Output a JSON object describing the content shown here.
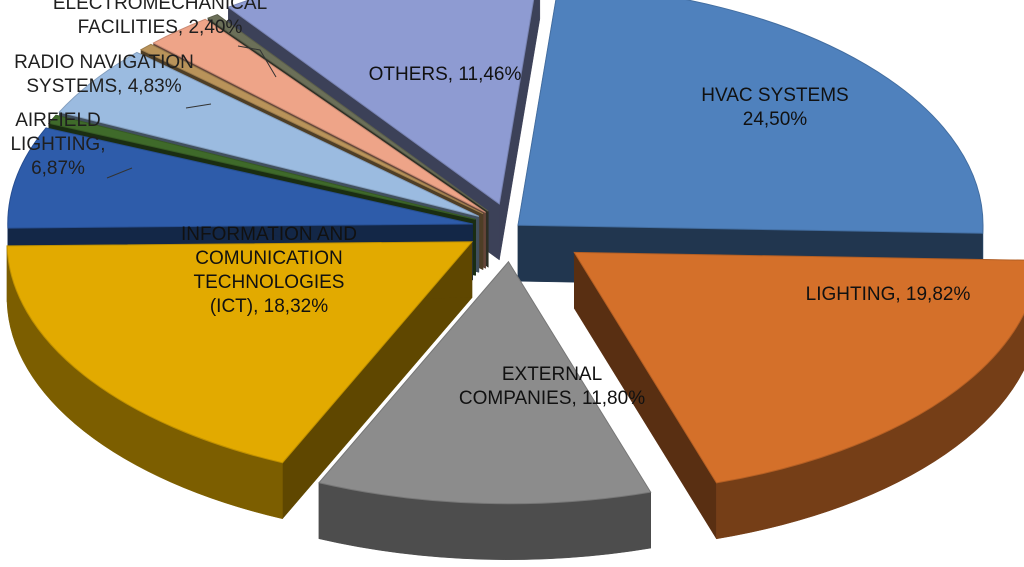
{
  "chart_data": {
    "type": "pie",
    "title": "",
    "style": "3d-exploded",
    "legend": "none",
    "slices": [
      {
        "name": "HVAC SYSTEMS",
        "value": 24.5,
        "label_lines": [
          "HVAC SYSTEMS",
          "24,50%"
        ],
        "color": "#4f81bd"
      },
      {
        "name": "LIGHTING",
        "value": 19.82,
        "label_lines": [
          "LIGHTING, 19,82%"
        ],
        "color": "#d4702a"
      },
      {
        "name": "EXTERNAL COMPANIES",
        "value": 11.8,
        "label_lines": [
          "EXTERNAL",
          "COMPANIES, 11,80%"
        ],
        "color": "#8c8c8c"
      },
      {
        "name": "INFORMATION AND COMUNICATION TECHNOLOGIES (ICT)",
        "value": 18.32,
        "label_lines": [
          "INFORMATION AND",
          "COMUNICATION",
          "TECHNOLOGIES",
          "(ICT), 18,32%"
        ],
        "color": "#e2aa00"
      },
      {
        "name": "AIRFIELD LIGHTING",
        "value": 6.87,
        "label_lines": [
          "AIRFIELD",
          "LIGHTING,",
          "6,87%"
        ],
        "color": "#2e5caa"
      },
      {
        "name": "",
        "value": 0.6,
        "label_lines": [],
        "color": "#3f6a2a"
      },
      {
        "name": "RADIO NAVIGATION SYSTEMS",
        "value": 4.83,
        "label_lines": [
          "RADIO NAVIGATION",
          "SYSTEMS, 4,83%"
        ],
        "color": "#9bbbe0"
      },
      {
        "name": "",
        "value": 0.5,
        "label_lines": [],
        "color": "#b9935a"
      },
      {
        "name": "ELECTROMECHANICAL FACILITIES",
        "value": 2.4,
        "label_lines": [
          "ELECTROMECHANICAL",
          "FACILITIES, 2,40%"
        ],
        "color": "#eea488"
      },
      {
        "name": "",
        "value": 0.4,
        "label_lines": [],
        "color": "#6b6f58"
      },
      {
        "name": "OTHERS",
        "value": 11.46,
        "label_lines": [
          "OTHERS, 11,46%"
        ],
        "color": "#8e9bd2"
      }
    ]
  }
}
